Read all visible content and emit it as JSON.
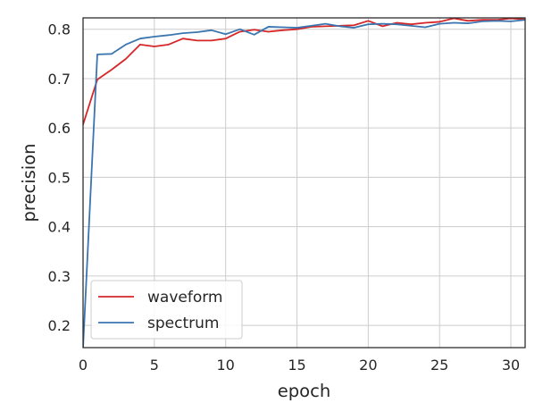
{
  "chart_data": {
    "type": "line",
    "xlabel": "epoch",
    "ylabel": "precision",
    "xlim": [
      0,
      31
    ],
    "ylim": [
      0.155,
      0.823
    ],
    "xticks": [
      0,
      5,
      10,
      15,
      20,
      25,
      30
    ],
    "yticks": [
      0.2,
      0.3,
      0.4,
      0.5,
      0.6,
      0.7,
      0.8
    ],
    "grid": true,
    "legend_position": "lower-left",
    "series": [
      {
        "name": "waveform",
        "color": "#d62728",
        "x": [
          0,
          1,
          2,
          3,
          4,
          5,
          6,
          7,
          8,
          9,
          10,
          11,
          12,
          13,
          14,
          15,
          16,
          17,
          18,
          19,
          20,
          21,
          22,
          23,
          24,
          25,
          26,
          27,
          28,
          29,
          30,
          31
        ],
        "values": [
          0.607,
          0.698,
          0.718,
          0.74,
          0.769,
          0.765,
          0.769,
          0.781,
          0.777,
          0.777,
          0.781,
          0.795,
          0.799,
          0.795,
          0.798,
          0.8,
          0.805,
          0.806,
          0.807,
          0.808,
          0.817,
          0.806,
          0.813,
          0.81,
          0.813,
          0.815,
          0.822,
          0.817,
          0.819,
          0.819,
          0.822,
          0.82
        ]
      },
      {
        "name": "spectrum",
        "color": "#3b75af",
        "x": [
          0,
          1,
          2,
          3,
          4,
          5,
          6,
          7,
          8,
          9,
          10,
          11,
          12,
          13,
          14,
          15,
          16,
          17,
          18,
          19,
          20,
          21,
          22,
          23,
          24,
          25,
          26,
          27,
          28,
          29,
          30,
          31
        ],
        "values": [
          0.155,
          0.749,
          0.75,
          0.769,
          0.781,
          0.785,
          0.788,
          0.792,
          0.794,
          0.798,
          0.79,
          0.8,
          0.789,
          0.805,
          0.804,
          0.803,
          0.807,
          0.811,
          0.806,
          0.803,
          0.81,
          0.811,
          0.81,
          0.807,
          0.804,
          0.811,
          0.813,
          0.812,
          0.816,
          0.817,
          0.816,
          0.819
        ]
      }
    ]
  }
}
